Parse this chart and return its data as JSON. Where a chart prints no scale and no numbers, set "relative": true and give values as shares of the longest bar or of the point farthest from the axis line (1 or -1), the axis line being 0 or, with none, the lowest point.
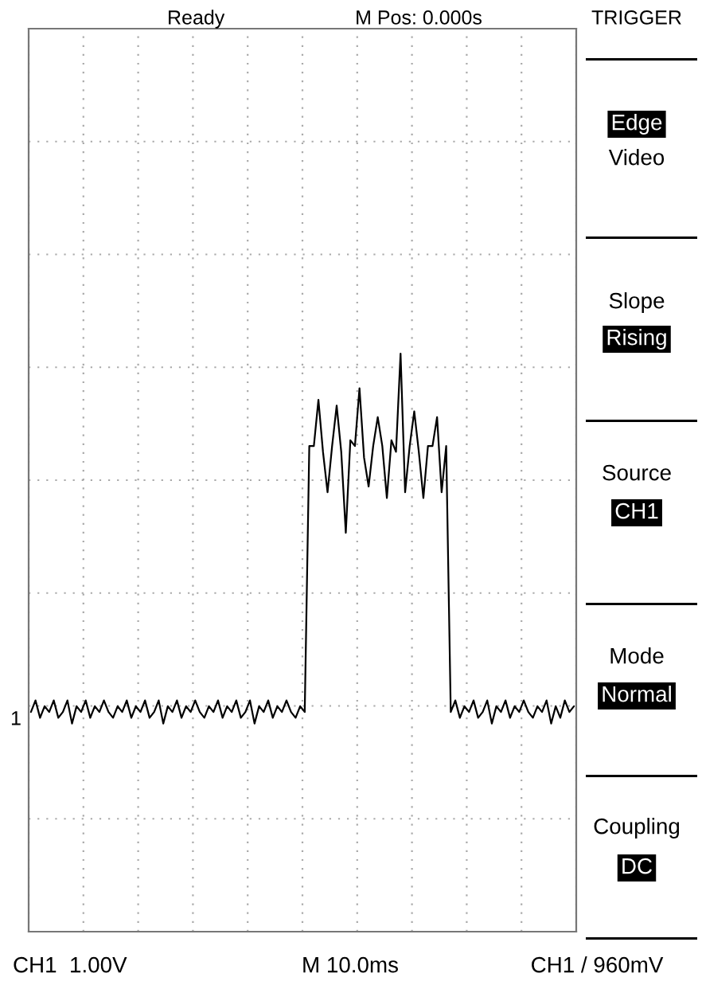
{
  "chart_data": {
    "type": "line",
    "relative": true,
    "grid": true,
    "tick_labels": false,
    "marker": "none",
    "line_style": "solid",
    "categories": [
      null,
      null,
      null,
      null,
      null,
      null,
      null,
      null,
      null,
      null,
      null,
      null,
      null,
      null,
      null,
      null,
      null,
      null,
      null,
      null,
      null,
      null,
      null,
      null,
      null,
      null,
      null,
      null,
      null,
      null,
      null,
      null,
      null,
      null,
      null,
      null,
      null,
      null,
      null,
      null,
      null,
      null,
      null,
      null,
      null,
      null,
      null,
      null,
      null,
      null,
      null,
      null,
      null,
      null,
      null,
      null,
      null,
      null,
      null,
      null,
      null,
      null,
      null,
      null,
      null,
      null,
      null,
      null,
      null,
      null,
      null,
      null,
      null,
      null,
      null,
      null,
      null,
      null,
      null,
      null,
      null,
      null,
      null,
      null,
      null,
      null,
      null,
      null,
      null,
      null,
      null,
      null,
      null,
      null,
      null,
      null,
      null,
      null,
      null,
      null,
      null,
      null,
      null,
      null,
      null,
      null,
      null,
      null,
      null,
      null,
      null,
      null,
      null,
      null,
      null,
      null,
      null,
      null,
      null,
      null
    ],
    "series": [
      {
        "color": "#000000",
        "values": [
          0.38,
          0.4,
          0.37,
          0.39,
          0.38,
          0.4,
          0.37,
          0.38,
          0.4,
          0.36,
          0.39,
          0.38,
          0.4,
          0.37,
          0.39,
          0.38,
          0.4,
          0.38,
          0.37,
          0.39,
          0.38,
          0.4,
          0.37,
          0.39,
          0.38,
          0.4,
          0.37,
          0.38,
          0.4,
          0.36,
          0.39,
          0.38,
          0.4,
          0.37,
          0.39,
          0.38,
          0.4,
          0.38,
          0.37,
          0.39,
          0.38,
          0.4,
          0.37,
          0.39,
          0.38,
          0.4,
          0.37,
          0.38,
          0.4,
          0.36,
          0.39,
          0.38,
          0.4,
          0.37,
          0.39,
          0.38,
          0.4,
          0.38,
          0.37,
          0.39,
          0.38,
          0.84,
          0.84,
          0.92,
          0.83,
          0.76,
          0.84,
          0.91,
          0.83,
          0.69,
          0.85,
          0.84,
          0.94,
          0.82,
          0.77,
          0.84,
          0.89,
          0.84,
          0.75,
          0.85,
          0.83,
          1.0,
          0.76,
          0.84,
          0.9,
          0.83,
          0.75,
          0.84,
          0.84,
          0.89,
          0.76,
          0.84,
          0.38,
          0.4,
          0.37,
          0.39,
          0.38,
          0.4,
          0.37,
          0.38,
          0.4,
          0.36,
          0.39,
          0.38,
          0.4,
          0.37,
          0.39,
          0.38,
          0.4,
          0.38,
          0.37,
          0.39,
          0.38,
          0.4,
          0.36,
          0.39,
          0.37,
          0.4,
          0.38,
          0.39
        ]
      }
    ],
    "annotations": [
      "Ready",
      "M Pos: 0.000s",
      "TRIGGER",
      "Edge",
      "Video",
      "Slope",
      "Rising",
      "Source",
      "CH1",
      "Mode",
      "Normal",
      "Coupling",
      "DC",
      "CH1  1.00V",
      "M 10.0ms",
      "CH1 / 960mV",
      "1"
    ]
  }
}
